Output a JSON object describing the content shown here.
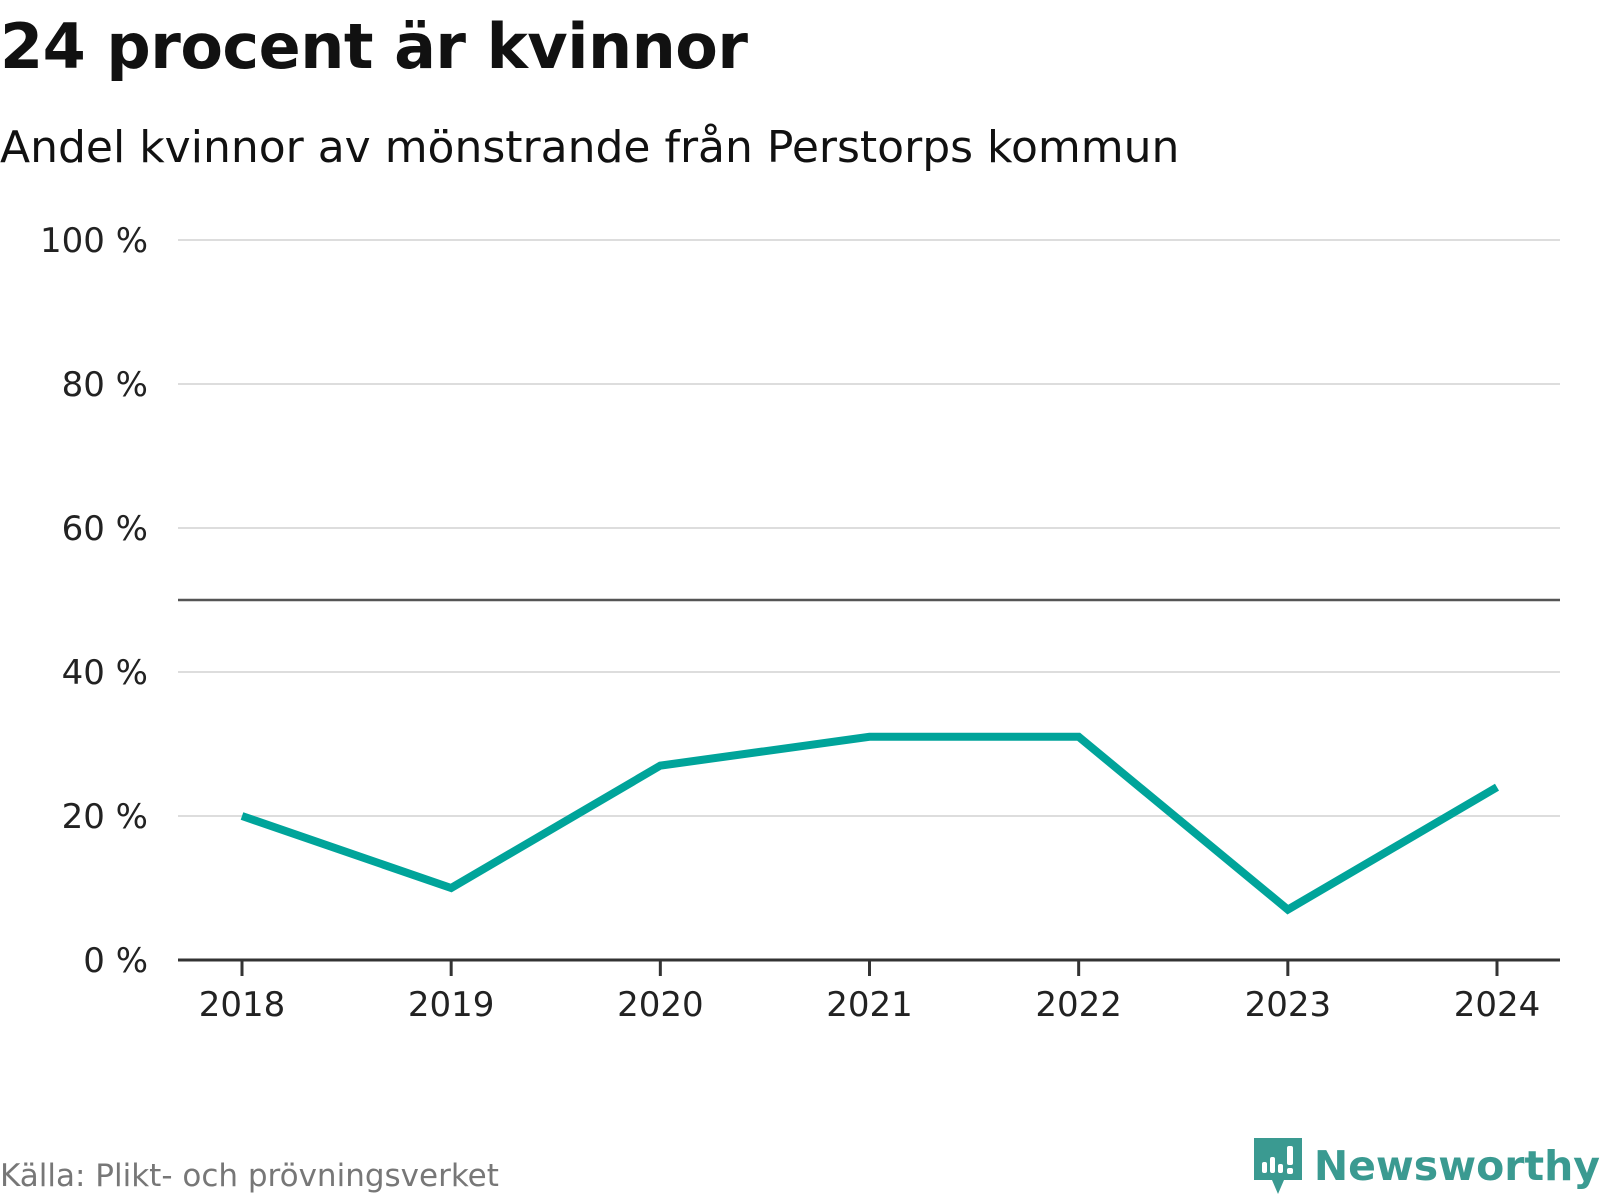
{
  "title": "24 procent är kvinnor",
  "subtitle": "Andel kvinnor av mönstrande från Perstorps kommun",
  "source": "Källa: Plikt- och prövningsverket",
  "brand": {
    "name": "Newsworthy",
    "icon": "newsworthy-logo-icon",
    "color": "#3a9a91"
  },
  "chart_data": {
    "type": "line",
    "title": "24 procent är kvinnor",
    "subtitle": "Andel kvinnor av mönstrande från Perstorps kommun",
    "x": [
      "2018",
      "2019",
      "2020",
      "2021",
      "2022",
      "2023",
      "2024"
    ],
    "series": [
      {
        "values": [
          20,
          10,
          27,
          31,
          31,
          7,
          24
        ],
        "color": "#00a49a"
      }
    ],
    "ylim": [
      0,
      100
    ],
    "yticks": [
      0,
      20,
      40,
      60,
      80,
      100
    ],
    "ytick_labels": [
      "0 %",
      "20 %",
      "40 %",
      "60 %",
      "80 %",
      "100 %"
    ],
    "reference_line": 50,
    "grid": true,
    "legend": "none"
  }
}
